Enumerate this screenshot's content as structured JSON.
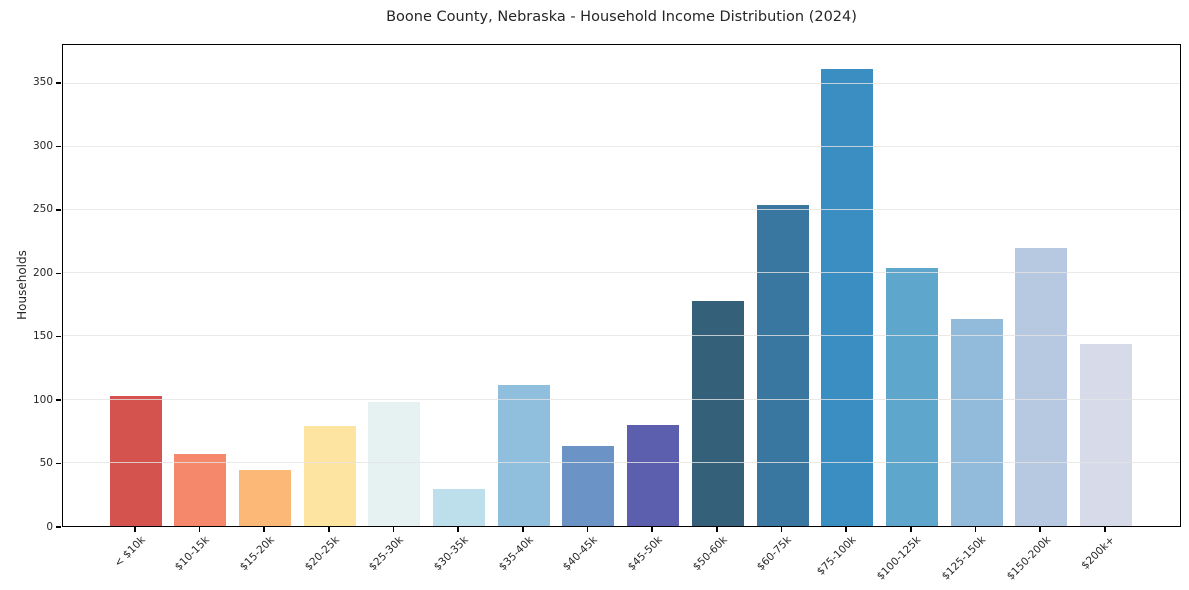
{
  "chart_data": {
    "type": "bar",
    "title": "Boone County, Nebraska - Household Income Distribution (2024)",
    "xlabel": "",
    "ylabel": "Households",
    "categories": [
      "< $10k",
      "$10-15k",
      "$15-20k",
      "$20-25k",
      "$25-30k",
      "$30-35k",
      "$35-40k",
      "$40-45k",
      "$45-50k",
      "$50-60k",
      "$60-75k",
      "$75-100k",
      "$100-125k",
      "$125-150k",
      "$150-200k",
      "$200k+"
    ],
    "values": [
      103,
      57,
      44,
      79,
      98,
      29,
      112,
      63,
      80,
      178,
      254,
      362,
      204,
      164,
      220,
      144
    ],
    "bar_colors": [
      "#d5534e",
      "#f5876a",
      "#fbb877",
      "#fde4a1",
      "#e6f2f1",
      "#bddeeb",
      "#90bedd",
      "#6b93c6",
      "#5b5fae",
      "#35607a",
      "#3a77a0",
      "#3a8ec2",
      "#5ea6cc",
      "#92bada",
      "#b7c9e1",
      "#d7dae8"
    ],
    "yticks": [
      0,
      50,
      100,
      150,
      200,
      250,
      300,
      350
    ],
    "ylim": [
      0,
      380.7
    ],
    "grid": "horizontal",
    "legend": "none"
  }
}
